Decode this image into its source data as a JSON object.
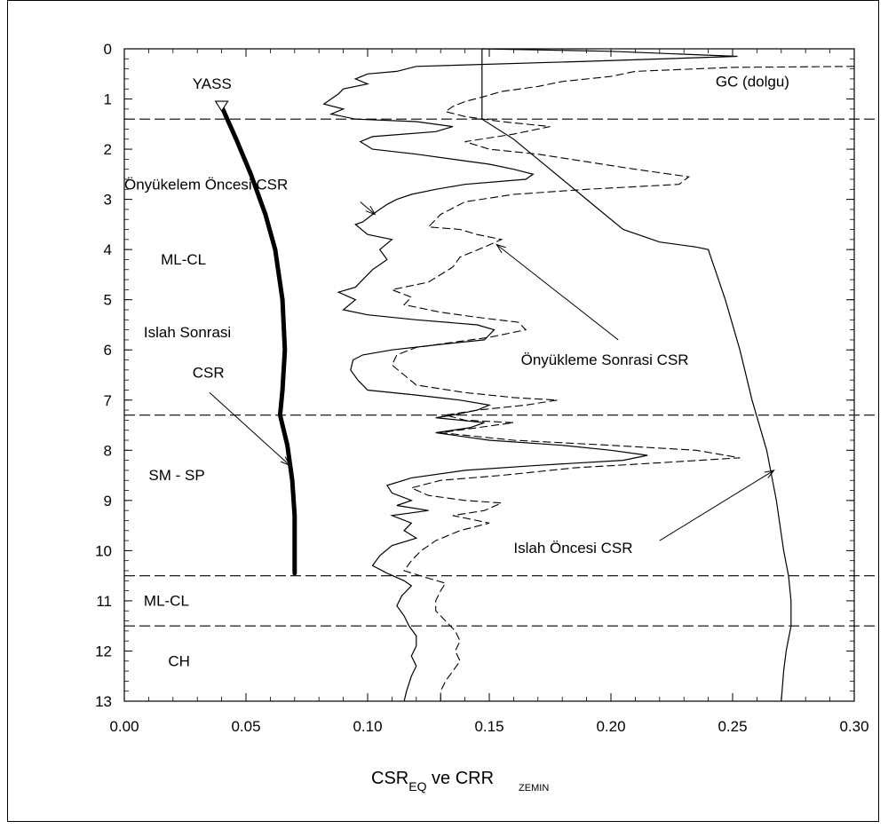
{
  "chart_data": {
    "type": "line",
    "x_axis": {
      "label_main": "CSR",
      "label_sub1": "EQ",
      "label_mid": " ve CRR",
      "label_sub2": "ZEMIN",
      "range": [
        0,
        0.3
      ],
      "ticks": [
        "0.00",
        "0.05",
        "0.10",
        "0.15",
        "0.20",
        "0.25",
        "0.30"
      ],
      "tick_values": [
        0,
        0.05,
        0.1,
        0.15,
        0.2,
        0.25,
        0.3
      ]
    },
    "y_axis": {
      "range": [
        0,
        13
      ],
      "inverted": true,
      "ticks": [
        "0",
        "1",
        "2",
        "3",
        "4",
        "5",
        "6",
        "7",
        "8",
        "9",
        "10",
        "11",
        "12",
        "13"
      ],
      "tick_values": [
        0,
        1,
        2,
        3,
        4,
        5,
        6,
        7,
        8,
        9,
        10,
        11,
        12,
        13
      ]
    },
    "layer_boundaries": [
      1.4,
      7.3,
      10.5,
      11.5
    ],
    "layer_labels": [
      {
        "text": "GC (dolgu)",
        "x": 0.243,
        "y": 0.75
      },
      {
        "text": "ML-CL",
        "x": 0.015,
        "y": 4.3
      },
      {
        "text": "SM - SP",
        "x": 0.01,
        "y": 8.6
      },
      {
        "text": "ML-CL",
        "x": 0.008,
        "y": 11.1
      },
      {
        "text": "CH",
        "x": 0.018,
        "y": 12.3
      }
    ],
    "annotations": [
      {
        "text": "YASS",
        "x": 0.028,
        "y": 0.8
      },
      {
        "text": "Önyükelem Öncesi CSR",
        "x": 0.0,
        "y": 2.8
      },
      {
        "text": "Islah  Sonrasi",
        "x": 0.008,
        "y": 5.75
      },
      {
        "text": "CSR",
        "x": 0.028,
        "y": 6.55
      },
      {
        "text": "Önyükleme Sonrasi CSR",
        "x": 0.163,
        "y": 6.3
      },
      {
        "text": "Islah Öncesi CSR",
        "x": 0.16,
        "y": 10.05
      }
    ],
    "arrows": [
      {
        "from": [
          0.097,
          3.05
        ],
        "to": [
          0.103,
          3.3
        ]
      },
      {
        "from": [
          0.203,
          5.8
        ],
        "to": [
          0.153,
          3.9
        ]
      },
      {
        "from": [
          0.035,
          6.85
        ],
        "to": [
          0.068,
          8.3
        ]
      },
      {
        "from": [
          0.22,
          9.8
        ],
        "to": [
          0.267,
          8.4
        ]
      }
    ],
    "water_table": {
      "label": "YASS",
      "x": 0.04,
      "y": 1.15
    },
    "series": [
      {
        "style": "thick",
        "points": [
          [
            0.04,
            1.15
          ],
          [
            0.046,
            1.8
          ],
          [
            0.052,
            2.5
          ],
          [
            0.058,
            3.3
          ],
          [
            0.062,
            4.0
          ],
          [
            0.065,
            5.0
          ],
          [
            0.066,
            6.0
          ],
          [
            0.065,
            6.8
          ],
          [
            0.064,
            7.3
          ],
          [
            0.067,
            7.9
          ],
          [
            0.069,
            8.6
          ],
          [
            0.07,
            9.3
          ],
          [
            0.07,
            10.0
          ],
          [
            0.07,
            10.45
          ]
        ]
      },
      {
        "style": "solid",
        "points": [
          [
            0.147,
            0
          ],
          [
            0.147,
            1.4
          ],
          [
            0.16,
            1.8
          ],
          [
            0.175,
            2.4
          ],
          [
            0.19,
            3.0
          ],
          [
            0.205,
            3.6
          ],
          [
            0.22,
            3.85
          ],
          [
            0.235,
            3.95
          ],
          [
            0.24,
            4.0
          ],
          [
            0.247,
            5.0
          ],
          [
            0.253,
            6.0
          ],
          [
            0.258,
            7.0
          ],
          [
            0.264,
            8.0
          ],
          [
            0.268,
            9.0
          ],
          [
            0.271,
            10.0
          ],
          [
            0.273,
            10.5
          ],
          [
            0.274,
            11.0
          ],
          [
            0.274,
            11.5
          ],
          [
            0.272,
            12.0
          ],
          [
            0.271,
            12.4
          ],
          [
            0.27,
            13.0
          ]
        ]
      },
      {
        "style": "solid",
        "points": [
          [
            0.147,
            0.0
          ],
          [
            0.2,
            0.05
          ],
          [
            0.252,
            0.15
          ],
          [
            0.19,
            0.25
          ],
          [
            0.12,
            0.35
          ],
          [
            0.112,
            0.45
          ],
          [
            0.1,
            0.5
          ],
          [
            0.095,
            0.6
          ],
          [
            0.1,
            0.7
          ],
          [
            0.09,
            0.8
          ],
          [
            0.088,
            0.9
          ],
          [
            0.085,
            1.0
          ],
          [
            0.082,
            1.1
          ],
          [
            0.09,
            1.2
          ],
          [
            0.085,
            1.3
          ],
          [
            0.095,
            1.4
          ],
          [
            0.12,
            1.45
          ],
          [
            0.135,
            1.55
          ],
          [
            0.128,
            1.65
          ],
          [
            0.102,
            1.75
          ],
          [
            0.097,
            1.85
          ],
          [
            0.102,
            2.0
          ],
          [
            0.12,
            2.1
          ],
          [
            0.135,
            2.2
          ],
          [
            0.15,
            2.3
          ],
          [
            0.16,
            2.4
          ],
          [
            0.168,
            2.5
          ],
          [
            0.165,
            2.6
          ],
          [
            0.14,
            2.7
          ],
          [
            0.128,
            2.8
          ],
          [
            0.118,
            2.9
          ],
          [
            0.112,
            3.0
          ],
          [
            0.108,
            3.1
          ],
          [
            0.105,
            3.2
          ],
          [
            0.102,
            3.3
          ],
          [
            0.098,
            3.45
          ],
          [
            0.095,
            3.5
          ],
          [
            0.1,
            3.7
          ],
          [
            0.11,
            3.8
          ],
          [
            0.105,
            4.0
          ],
          [
            0.108,
            4.2
          ],
          [
            0.102,
            4.4
          ],
          [
            0.098,
            4.6
          ],
          [
            0.095,
            4.75
          ],
          [
            0.088,
            4.85
          ],
          [
            0.095,
            5.0
          ],
          [
            0.09,
            5.2
          ],
          [
            0.1,
            5.3
          ],
          [
            0.12,
            5.4
          ],
          [
            0.145,
            5.5
          ],
          [
            0.152,
            5.6
          ],
          [
            0.148,
            5.8
          ],
          [
            0.128,
            5.9
          ],
          [
            0.11,
            6.0
          ],
          [
            0.098,
            6.1
          ],
          [
            0.094,
            6.2
          ],
          [
            0.093,
            6.4
          ],
          [
            0.096,
            6.6
          ],
          [
            0.1,
            6.8
          ],
          [
            0.12,
            6.9
          ],
          [
            0.138,
            7.0
          ],
          [
            0.15,
            7.1
          ],
          [
            0.145,
            7.2
          ],
          [
            0.135,
            7.3
          ],
          [
            0.128,
            7.35
          ],
          [
            0.148,
            7.45
          ],
          [
            0.142,
            7.55
          ],
          [
            0.128,
            7.65
          ],
          [
            0.15,
            7.8
          ],
          [
            0.18,
            7.9
          ],
          [
            0.2,
            8.0
          ],
          [
            0.215,
            8.1
          ],
          [
            0.205,
            8.2
          ],
          [
            0.17,
            8.3
          ],
          [
            0.14,
            8.4
          ],
          [
            0.118,
            8.55
          ],
          [
            0.108,
            8.7
          ],
          [
            0.11,
            8.85
          ],
          [
            0.118,
            9.0
          ],
          [
            0.112,
            9.1
          ],
          [
            0.125,
            9.2
          ],
          [
            0.11,
            9.3
          ],
          [
            0.118,
            9.45
          ],
          [
            0.115,
            9.6
          ],
          [
            0.12,
            9.75
          ],
          [
            0.11,
            9.9
          ],
          [
            0.105,
            10.1
          ],
          [
            0.102,
            10.3
          ],
          [
            0.108,
            10.45
          ],
          [
            0.115,
            10.6
          ],
          [
            0.118,
            10.7
          ],
          [
            0.114,
            10.9
          ],
          [
            0.112,
            11.1
          ],
          [
            0.115,
            11.3
          ],
          [
            0.117,
            11.5
          ],
          [
            0.12,
            11.7
          ],
          [
            0.12,
            11.9
          ],
          [
            0.118,
            12.1
          ],
          [
            0.12,
            12.3
          ],
          [
            0.118,
            12.5
          ],
          [
            0.116,
            12.8
          ],
          [
            0.115,
            13.0
          ]
        ]
      },
      {
        "style": "dashed",
        "points": [
          [
            0.3,
            0.35
          ],
          [
            0.25,
            0.37
          ],
          [
            0.21,
            0.45
          ],
          [
            0.2,
            0.55
          ],
          [
            0.18,
            0.65
          ],
          [
            0.17,
            0.75
          ],
          [
            0.155,
            0.85
          ],
          [
            0.148,
            0.95
          ],
          [
            0.14,
            1.05
          ],
          [
            0.135,
            1.15
          ],
          [
            0.132,
            1.25
          ],
          [
            0.14,
            1.35
          ],
          [
            0.155,
            1.45
          ],
          [
            0.175,
            1.55
          ],
          [
            0.16,
            1.7
          ],
          [
            0.14,
            1.85
          ],
          [
            0.15,
            2.0
          ],
          [
            0.17,
            2.1
          ],
          [
            0.19,
            2.25
          ],
          [
            0.21,
            2.4
          ],
          [
            0.232,
            2.55
          ],
          [
            0.228,
            2.7
          ],
          [
            0.19,
            2.8
          ],
          [
            0.16,
            2.9
          ],
          [
            0.14,
            3.05
          ],
          [
            0.13,
            3.3
          ],
          [
            0.125,
            3.55
          ],
          [
            0.138,
            3.6
          ],
          [
            0.145,
            3.7
          ],
          [
            0.155,
            3.8
          ],
          [
            0.148,
            3.95
          ],
          [
            0.138,
            4.15
          ],
          [
            0.135,
            4.35
          ],
          [
            0.13,
            4.5
          ],
          [
            0.125,
            4.65
          ],
          [
            0.11,
            4.8
          ],
          [
            0.118,
            4.95
          ],
          [
            0.115,
            5.1
          ],
          [
            0.13,
            5.25
          ],
          [
            0.145,
            5.35
          ],
          [
            0.162,
            5.45
          ],
          [
            0.165,
            5.6
          ],
          [
            0.15,
            5.75
          ],
          [
            0.135,
            5.85
          ],
          [
            0.12,
            5.95
          ],
          [
            0.112,
            6.1
          ],
          [
            0.11,
            6.3
          ],
          [
            0.115,
            6.5
          ],
          [
            0.12,
            6.7
          ],
          [
            0.14,
            6.85
          ],
          [
            0.16,
            6.95
          ],
          [
            0.178,
            7.0
          ],
          [
            0.165,
            7.1
          ],
          [
            0.145,
            7.2
          ],
          [
            0.132,
            7.3
          ],
          [
            0.14,
            7.4
          ],
          [
            0.16,
            7.45
          ],
          [
            0.145,
            7.55
          ],
          [
            0.13,
            7.65
          ],
          [
            0.16,
            7.8
          ],
          [
            0.2,
            7.9
          ],
          [
            0.235,
            8.0
          ],
          [
            0.253,
            8.15
          ],
          [
            0.22,
            8.25
          ],
          [
            0.185,
            8.35
          ],
          [
            0.155,
            8.5
          ],
          [
            0.13,
            8.6
          ],
          [
            0.118,
            8.75
          ],
          [
            0.125,
            8.9
          ],
          [
            0.14,
            9.0
          ],
          [
            0.155,
            9.05
          ],
          [
            0.148,
            9.2
          ],
          [
            0.135,
            9.3
          ],
          [
            0.15,
            9.45
          ],
          [
            0.138,
            9.6
          ],
          [
            0.128,
            9.8
          ],
          [
            0.122,
            10.0
          ],
          [
            0.118,
            10.2
          ],
          [
            0.115,
            10.4
          ],
          [
            0.125,
            10.55
          ],
          [
            0.132,
            10.65
          ],
          [
            0.13,
            10.8
          ],
          [
            0.128,
            11.0
          ],
          [
            0.128,
            11.2
          ],
          [
            0.132,
            11.4
          ],
          [
            0.136,
            11.6
          ],
          [
            0.138,
            11.8
          ],
          [
            0.136,
            12.0
          ],
          [
            0.138,
            12.2
          ],
          [
            0.135,
            12.4
          ],
          [
            0.132,
            12.6
          ],
          [
            0.13,
            12.8
          ],
          [
            0.13,
            13.0
          ]
        ]
      }
    ]
  }
}
